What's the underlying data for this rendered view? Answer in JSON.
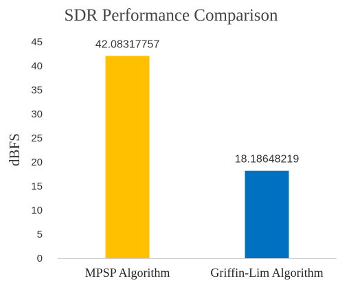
{
  "chart_data": {
    "type": "bar",
    "title": "SDR Performance Comparison",
    "xlabel": "",
    "ylabel": "dBFS",
    "categories": [
      "MPSP Algorithm",
      "Griffin-Lim Algorithm"
    ],
    "values": [
      42.08317757,
      18.18648219
    ],
    "data_labels": [
      "42.08317757",
      "18.18648219"
    ],
    "ylim": [
      0,
      45
    ],
    "yticks": [
      0,
      5,
      10,
      15,
      20,
      25,
      30,
      35,
      40,
      45
    ],
    "grid": false,
    "legend": "none",
    "colors": [
      "#FFC000",
      "#0070C0"
    ]
  }
}
